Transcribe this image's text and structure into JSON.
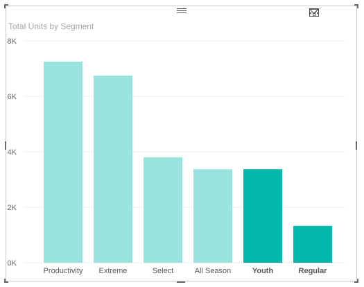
{
  "visual": {
    "title": "Total Units by Segment",
    "icons": {
      "filter": "filter-icon",
      "focus": "focus-mode-icon",
      "more": "more-options-icon",
      "drag": "drag-handle-icon"
    }
  },
  "colors": {
    "highlight": "#01B8AA",
    "dimmed": "#99E3DD",
    "grid": "#ebebeb",
    "axis_text": "#666666"
  },
  "chart_data": {
    "type": "bar",
    "title": "Total Units by Segment",
    "categories": [
      "Productivity",
      "Extreme",
      "Select",
      "All Season",
      "Youth",
      "Regular"
    ],
    "values": [
      7250,
      6750,
      3800,
      3370,
      3370,
      1330
    ],
    "highlighted": [
      false,
      false,
      false,
      false,
      true,
      true
    ],
    "ylim": [
      0,
      8000
    ],
    "y_ticks": [
      0,
      2000,
      4000,
      6000,
      8000
    ],
    "y_tick_labels": [
      "0K",
      "2K",
      "4K",
      "6K",
      "8K"
    ],
    "grid": true
  }
}
